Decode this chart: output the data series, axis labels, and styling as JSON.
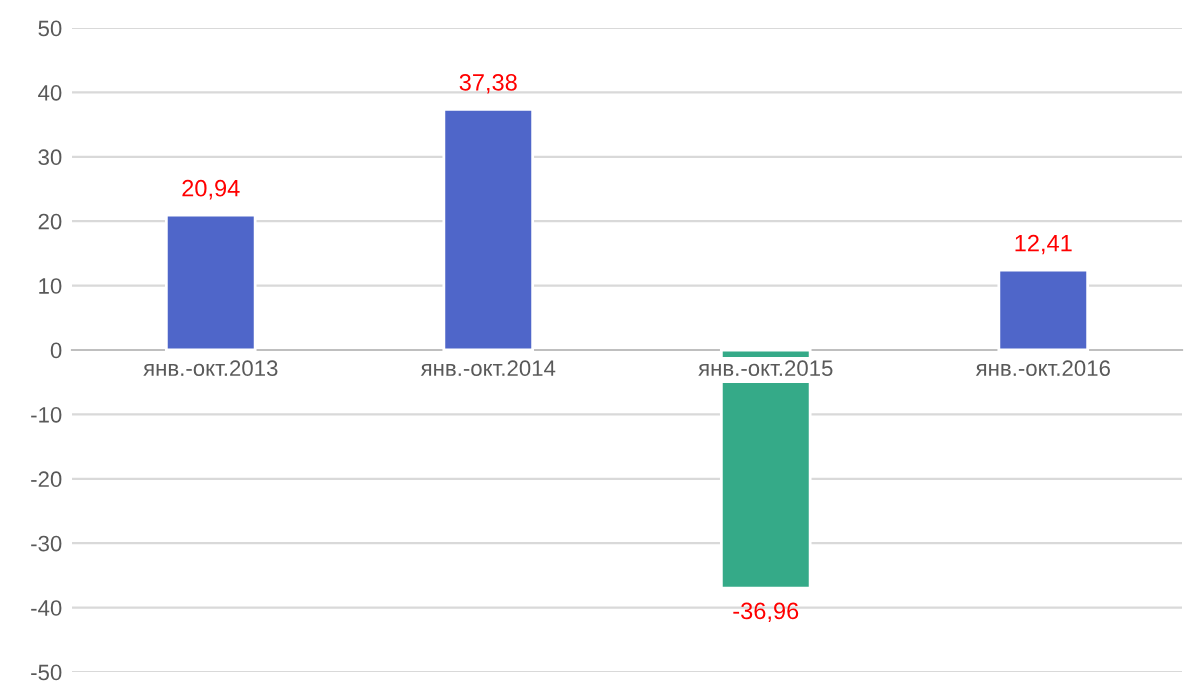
{
  "chart_data": {
    "type": "bar",
    "categories": [
      "янв.-окт.2013",
      "янв.-окт.2014",
      "янв.-окт.2015",
      "янв.-окт.2016"
    ],
    "values": [
      20.94,
      37.38,
      -36.96,
      12.41
    ],
    "colors": [
      "#4f66c9",
      "#4f66c9",
      "#35aa88",
      "#4f66c9"
    ],
    "value_labels": [
      "20,94",
      "37,38",
      "-36,96",
      "12,41"
    ],
    "ylim": [
      -50,
      50
    ],
    "yticks": [
      -50,
      -40,
      -30,
      -20,
      -10,
      0,
      10,
      20,
      30,
      40,
      50
    ],
    "grid": "y"
  }
}
